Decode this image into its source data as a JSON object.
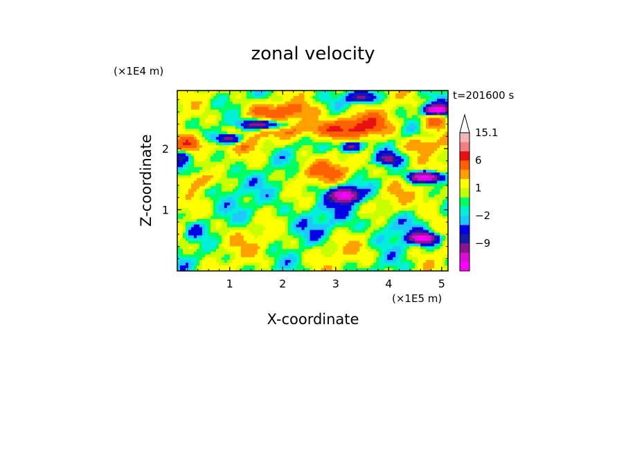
{
  "chart_data": {
    "type": "heatmap",
    "title": "zonal velocity",
    "xlabel": "X-coordinate",
    "ylabel": "Z-coordinate",
    "x_unit": "(×1E5 m)",
    "y_unit": "(×1E4 m)",
    "time_label": "t=201600 s",
    "x_ticks": [
      1,
      2,
      3,
      4,
      5
    ],
    "y_ticks": [
      1,
      2
    ],
    "xlim": [
      0.01,
      5.12
    ],
    "ylim": [
      0,
      2.95
    ],
    "colorbar": {
      "levels": [
        -15,
        -12,
        -9,
        -6,
        -4,
        -2,
        -1,
        0,
        1,
        2,
        4,
        6,
        9,
        12,
        15.1
      ],
      "colors": [
        "#ff00ff",
        "#d60fd6",
        "#8c148c",
        "#1a1aa8",
        "#0000e6",
        "#1cc8ff",
        "#00f0d8",
        "#00ff60",
        "#c8ff00",
        "#ffff00",
        "#ffa000",
        "#ff6000",
        "#e81010",
        "#f08080",
        "#f5b5b5"
      ],
      "labels": [
        "15.1",
        "6",
        "1",
        "−2",
        "−9"
      ],
      "label_values": [
        15.1,
        6,
        1,
        -2,
        -9
      ],
      "extend": "max"
    }
  }
}
